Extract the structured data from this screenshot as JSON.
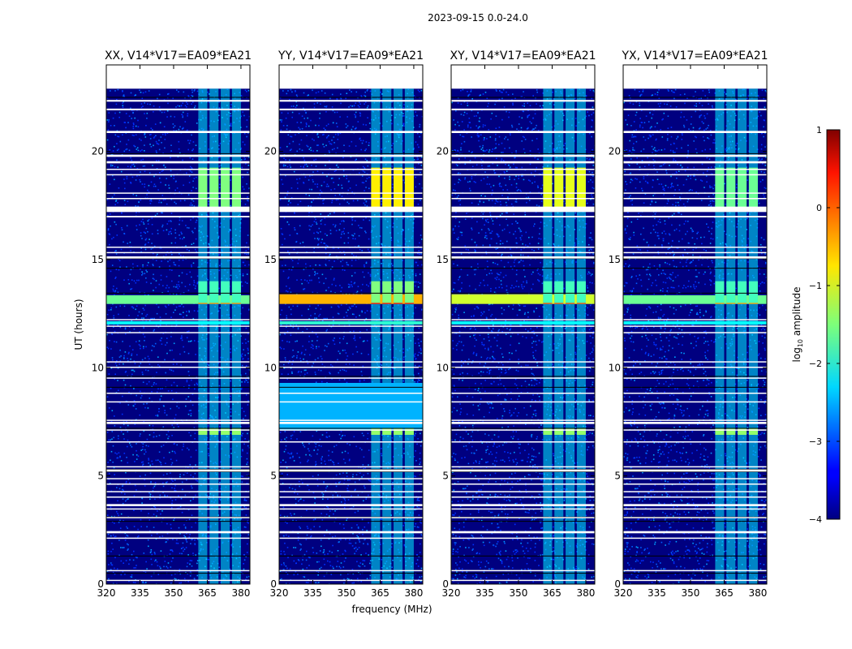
{
  "figure_title": "2023-09-15 0.0-24.0",
  "colors": {
    "background": "#000080",
    "noise_high": "#00a0ff",
    "flag": "#ffffff",
    "dark_line": "#000000"
  },
  "chart_data": {
    "type": "heatmap",
    "title": "2023-09-15 0.0-24.0",
    "xlabel": "frequency (MHz)",
    "ylabel": "UT (hours)",
    "xlim": [
      320,
      384
    ],
    "ylim": [
      0,
      24
    ],
    "x_ticks": [
      320,
      335,
      350,
      365,
      380
    ],
    "y_ticks": [
      0,
      5,
      10,
      15,
      20
    ],
    "data_ymax": 22.9,
    "colorbar": {
      "label_prefix": "log",
      "label_sub": "10",
      "label_suffix": " amplitude",
      "range": [
        -4,
        1
      ],
      "ticks": [
        1,
        0,
        -1,
        -2,
        -3,
        -4
      ],
      "tick_labels": [
        "1",
        "0",
        "−1",
        "−2",
        "−3",
        "−4"
      ]
    },
    "rfi_channel_bands_mhz": [
      [
        361,
        365
      ],
      [
        366,
        370
      ],
      [
        371,
        375
      ],
      [
        376,
        380
      ]
    ],
    "rfi_channel_band_base_level": -2.2,
    "flagged_time_ranges_hours": [
      [
        22.3,
        22.38
      ],
      [
        21.9,
        21.98
      ],
      [
        20.85,
        20.95
      ],
      [
        19.75,
        19.85
      ],
      [
        19.45,
        19.55
      ],
      [
        19.15,
        19.2
      ],
      [
        18.9,
        18.95
      ],
      [
        18.05,
        18.1
      ],
      [
        17.8,
        17.85
      ],
      [
        17.2,
        17.45
      ],
      [
        16.95,
        17.02
      ],
      [
        15.55,
        15.6
      ],
      [
        15.3,
        15.35
      ],
      [
        15.05,
        15.15
      ],
      [
        12.2,
        12.25
      ],
      [
        11.9,
        11.95
      ],
      [
        11.6,
        11.65
      ],
      [
        10.25,
        10.3
      ],
      [
        10.0,
        10.05
      ],
      [
        9.5,
        9.55
      ],
      [
        8.8,
        8.85
      ],
      [
        8.4,
        8.45
      ],
      [
        7.55,
        7.6
      ],
      [
        7.4,
        7.5
      ],
      [
        7.1,
        7.15
      ],
      [
        6.55,
        6.6
      ],
      [
        5.4,
        5.45
      ],
      [
        5.2,
        5.3
      ],
      [
        4.85,
        4.9
      ],
      [
        4.6,
        4.65
      ],
      [
        4.25,
        4.3
      ],
      [
        4.0,
        4.05
      ],
      [
        3.6,
        3.7
      ],
      [
        3.45,
        3.5
      ],
      [
        3.05,
        3.1
      ],
      [
        2.35,
        2.45
      ],
      [
        2.1,
        2.15
      ],
      [
        0.6,
        0.65
      ],
      [
        0.15,
        0.2
      ]
    ],
    "dark_lines_hours": [
      22.5,
      20.9,
      19.9,
      15.05,
      14.6,
      13.45,
      9.6,
      9.1,
      7.2,
      5.3,
      5.2,
      3.1,
      2.9,
      1.3,
      0.5
    ],
    "panels": [
      {
        "title": "XX, V14*V17=EA09*EA21",
        "events": [
          {
            "label": "rfi-block",
            "t_start": 17.4,
            "t_end": 19.25,
            "f_start": 361,
            "f_end": 380,
            "level": -1.5,
            "banded": true
          },
          {
            "label": "horizontal-rfi",
            "t_start": 12.95,
            "t_end": 13.35,
            "f_start": 320,
            "f_end": 384,
            "level": -1.6,
            "banded": false
          },
          {
            "label": "rfi-peak",
            "t_start": 12.95,
            "t_end": 13.35,
            "f_start": 361,
            "f_end": 380,
            "level": -0.3,
            "banded": true
          },
          {
            "label": "rfi-bright",
            "t_start": 13.0,
            "t_end": 14.0,
            "f_start": 361,
            "f_end": 380,
            "level": -1.8,
            "banded": true
          },
          {
            "label": "weak-line",
            "t_start": 12.0,
            "t_end": 12.15,
            "f_start": 320,
            "f_end": 384,
            "level": -2.1,
            "banded": false
          },
          {
            "label": "rfi-spot",
            "t_start": 6.9,
            "t_end": 7.2,
            "f_start": 361,
            "f_end": 380,
            "level": -1.4,
            "banded": true
          }
        ]
      },
      {
        "title": "YY, V14*V17=EA09*EA21",
        "events": [
          {
            "label": "rfi-block",
            "t_start": 17.4,
            "t_end": 19.25,
            "f_start": 361,
            "f_end": 380,
            "level": -0.8,
            "banded": true
          },
          {
            "label": "horizontal-rfi",
            "t_start": 12.95,
            "t_end": 13.4,
            "f_start": 320,
            "f_end": 384,
            "level": -0.5,
            "banded": false
          },
          {
            "label": "rfi-peak",
            "t_start": 12.95,
            "t_end": 13.4,
            "f_start": 361,
            "f_end": 380,
            "level": 0.3,
            "banded": true
          },
          {
            "label": "rfi-bright",
            "t_start": 13.0,
            "t_end": 14.0,
            "f_start": 361,
            "f_end": 380,
            "level": -1.5,
            "banded": true
          },
          {
            "label": "weak-line",
            "t_start": 12.0,
            "t_end": 12.15,
            "f_start": 320,
            "f_end": 384,
            "level": -1.9,
            "banded": false
          },
          {
            "label": "band-noise",
            "t_start": 7.1,
            "t_end": 9.3,
            "f_start": 320,
            "f_end": 384,
            "level": -2.5,
            "banded": false
          },
          {
            "label": "rfi-spot",
            "t_start": 6.9,
            "t_end": 7.2,
            "f_start": 361,
            "f_end": 380,
            "level": -1.4,
            "banded": true
          }
        ]
      },
      {
        "title": "XY, V14*V17=EA09*EA21",
        "events": [
          {
            "label": "rfi-block",
            "t_start": 17.4,
            "t_end": 19.25,
            "f_start": 361,
            "f_end": 380,
            "level": -1.0,
            "banded": true
          },
          {
            "label": "horizontal-rfi",
            "t_start": 12.95,
            "t_end": 13.4,
            "f_start": 320,
            "f_end": 384,
            "level": -1.1,
            "banded": false
          },
          {
            "label": "rfi-peak",
            "t_start": 12.95,
            "t_end": 13.4,
            "f_start": 361,
            "f_end": 380,
            "level": 0.0,
            "banded": true
          },
          {
            "label": "rfi-bright",
            "t_start": 13.0,
            "t_end": 14.0,
            "f_start": 361,
            "f_end": 380,
            "level": -1.8,
            "banded": true
          },
          {
            "label": "weak-line",
            "t_start": 12.0,
            "t_end": 12.15,
            "f_start": 320,
            "f_end": 384,
            "level": -2.1,
            "banded": false
          },
          {
            "label": "rfi-spot",
            "t_start": 6.9,
            "t_end": 7.2,
            "f_start": 361,
            "f_end": 380,
            "level": -1.4,
            "banded": true
          }
        ]
      },
      {
        "title": "YX, V14*V17=EA09*EA21",
        "events": [
          {
            "label": "rfi-block",
            "t_start": 17.4,
            "t_end": 19.25,
            "f_start": 361,
            "f_end": 380,
            "level": -1.6,
            "banded": true
          },
          {
            "label": "horizontal-rfi",
            "t_start": 12.95,
            "t_end": 13.35,
            "f_start": 320,
            "f_end": 384,
            "level": -1.6,
            "banded": false
          },
          {
            "label": "rfi-peak",
            "t_start": 12.95,
            "t_end": 13.35,
            "f_start": 361,
            "f_end": 380,
            "level": -0.4,
            "banded": true
          },
          {
            "label": "rfi-bright",
            "t_start": 13.0,
            "t_end": 14.0,
            "f_start": 361,
            "f_end": 380,
            "level": -1.8,
            "banded": true
          },
          {
            "label": "weak-line",
            "t_start": 12.0,
            "t_end": 12.15,
            "f_start": 320,
            "f_end": 384,
            "level": -2.1,
            "banded": false
          },
          {
            "label": "rfi-spot",
            "t_start": 6.9,
            "t_end": 7.2,
            "f_start": 361,
            "f_end": 380,
            "level": -1.4,
            "banded": true
          }
        ]
      }
    ]
  }
}
